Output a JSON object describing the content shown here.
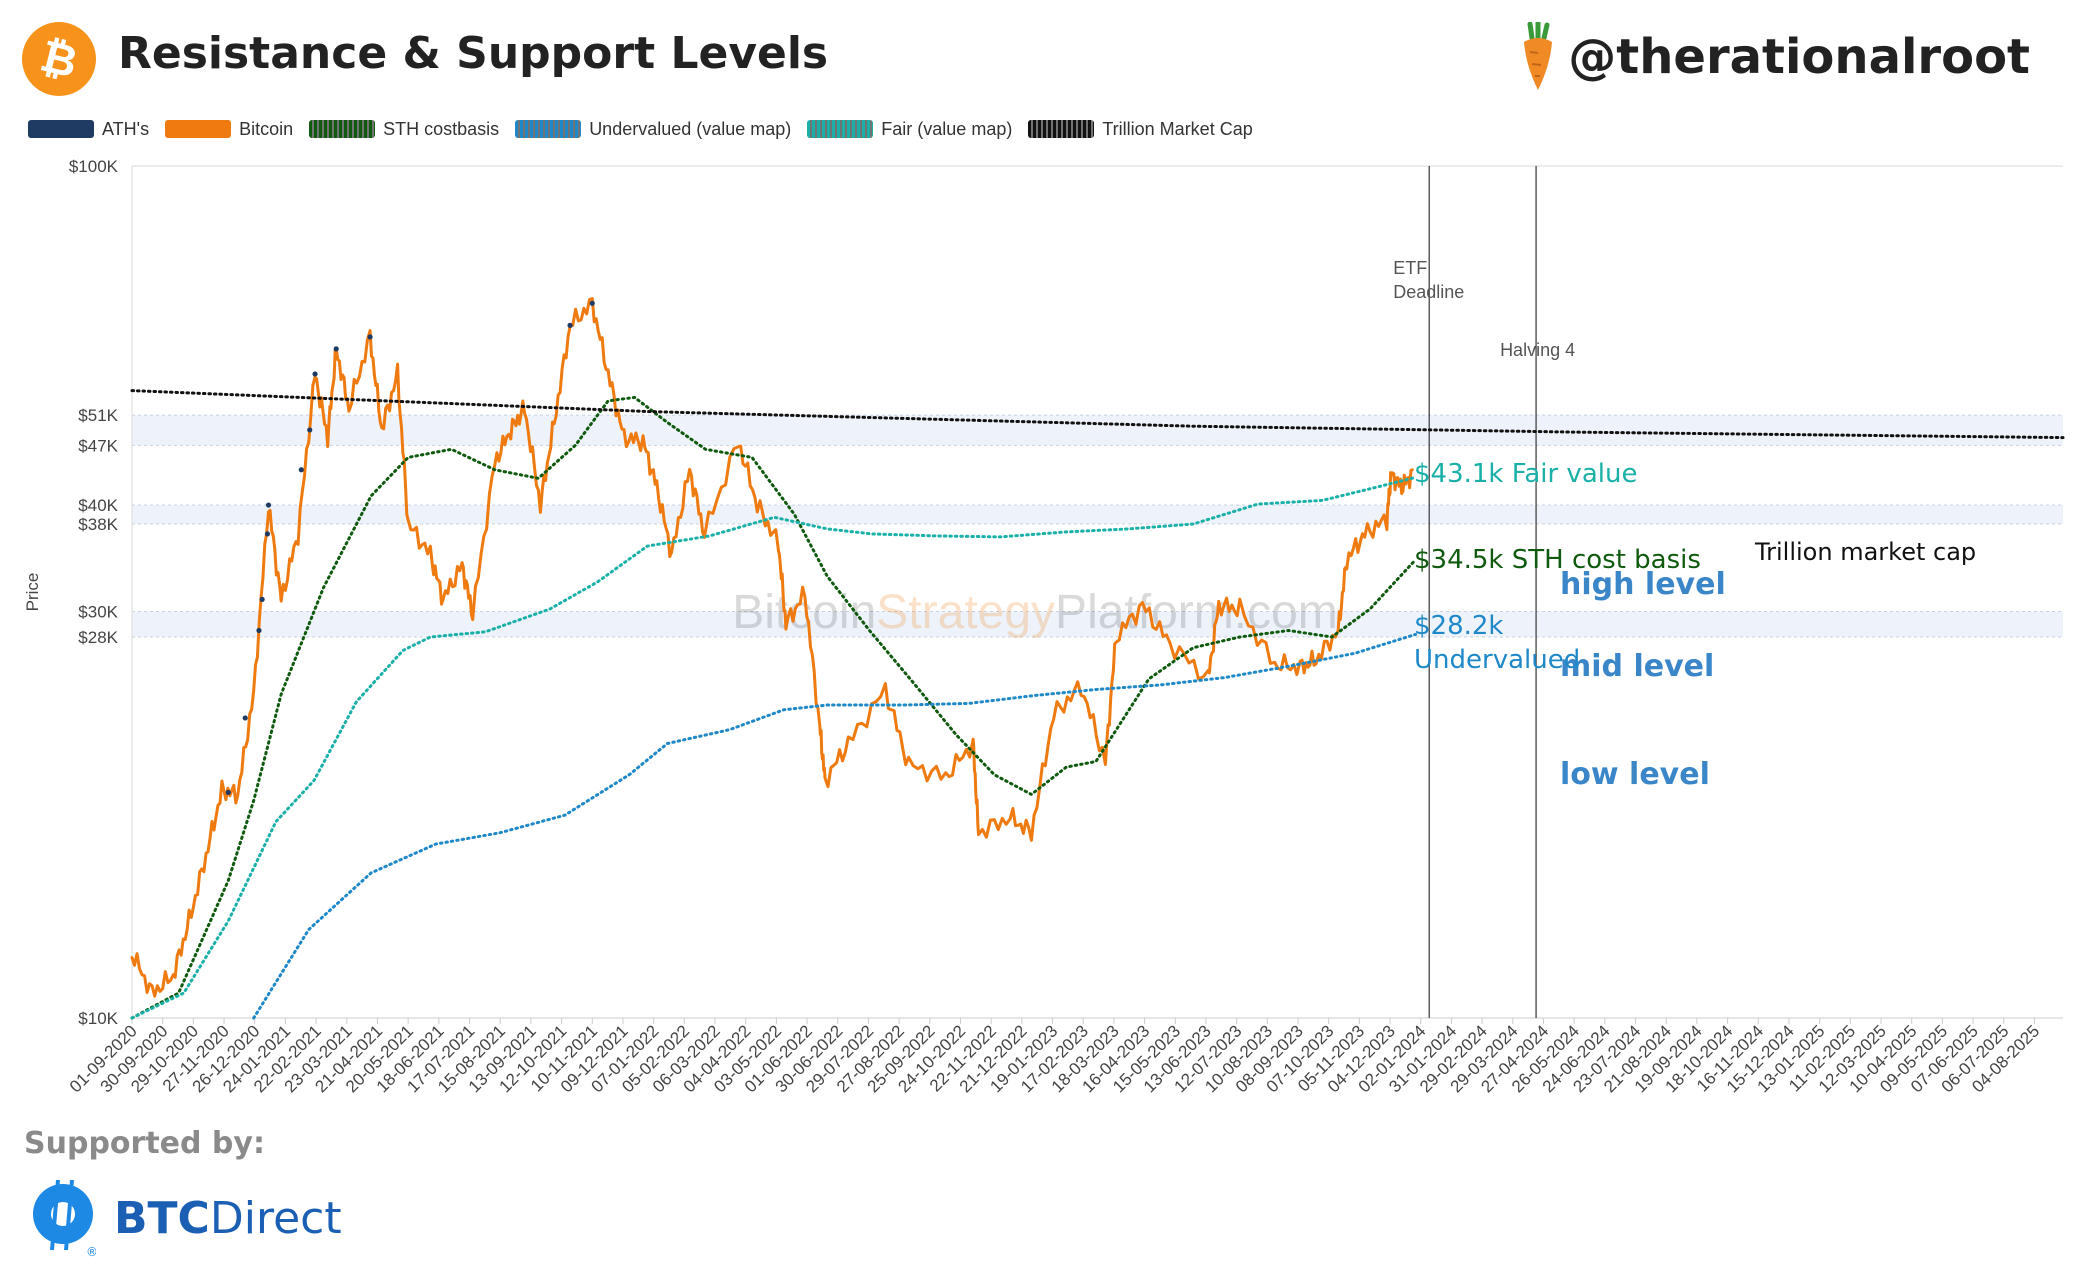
{
  "header": {
    "title": "Resistance & Support Levels",
    "handle": "@therationalroot",
    "logo_icon": "bitcoin-icon",
    "handle_icon": "carrot-icon"
  },
  "legend": [
    {
      "label": "ATH's",
      "color": "#1f3b63",
      "style": "solid"
    },
    {
      "label": "Bitcoin",
      "color": "#ee7a10",
      "style": "solid"
    },
    {
      "label": "STH costbasis",
      "color": "#0f5a0f",
      "style": "dotted"
    },
    {
      "label": "Undervalued (value map)",
      "color": "#1e88c8",
      "style": "dotted"
    },
    {
      "label": "Fair (value map)",
      "color": "#1ab0a8",
      "style": "dotted"
    },
    {
      "label": "Trillion Market Cap",
      "color": "#111111",
      "style": "dotted"
    }
  ],
  "chart_data": {
    "type": "line",
    "ylabel": "Price",
    "y_scale": "log",
    "ylim": [
      10000,
      100000
    ],
    "y_ticks": [
      {
        "value": 100000,
        "label": "$100K"
      },
      {
        "value": 51000,
        "label": "$51K"
      },
      {
        "value": 47000,
        "label": "$47K"
      },
      {
        "value": 40000,
        "label": "$40K"
      },
      {
        "value": 38000,
        "label": "$38K"
      },
      {
        "value": 30000,
        "label": "$30K"
      },
      {
        "value": 28000,
        "label": "$28K"
      },
      {
        "value": 10000,
        "label": "$10K"
      }
    ],
    "xlim": [
      "2020-09-01",
      "2025-08-31"
    ],
    "x_ticks": [
      "01-09-2020",
      "30-09-2020",
      "29-10-2020",
      "27-11-2020",
      "26-12-2020",
      "24-01-2021",
      "22-02-2021",
      "23-03-2021",
      "21-04-2021",
      "20-05-2021",
      "18-06-2021",
      "17-07-2021",
      "15-08-2021",
      "13-09-2021",
      "12-10-2021",
      "10-11-2021",
      "09-12-2021",
      "07-01-2022",
      "05-02-2022",
      "06-03-2022",
      "04-04-2022",
      "03-05-2022",
      "01-06-2022",
      "30-06-2022",
      "29-07-2022",
      "27-08-2022",
      "25-09-2022",
      "24-10-2022",
      "22-11-2022",
      "21-12-2022",
      "19-01-2023",
      "17-02-2023",
      "18-03-2023",
      "16-04-2023",
      "15-05-2023",
      "13-06-2023",
      "12-07-2023",
      "10-08-2023",
      "08-09-2023",
      "07-10-2023",
      "05-11-2023",
      "04-12-2023",
      "02-01-2024",
      "31-01-2024",
      "29-02-2024",
      "29-03-2024",
      "27-04-2024",
      "26-05-2024",
      "24-06-2024",
      "23-07-2024",
      "21-08-2024",
      "19-09-2024",
      "18-10-2024",
      "16-11-2024",
      "15-12-2024",
      "13-01-2025",
      "11-02-2025",
      "12-03-2025",
      "10-04-2025",
      "09-05-2025",
      "07-06-2025",
      "06-07-2025",
      "04-08-2025"
    ],
    "bands": [
      {
        "label": "high level",
        "low": 47000,
        "high": 51000,
        "color": "#eef3fb"
      },
      {
        "label": "mid level",
        "low": 38000,
        "high": 40000,
        "color": "#eef3fb"
      },
      {
        "label": "low level",
        "low": 28000,
        "high": 30000,
        "color": "#eef3fb"
      }
    ],
    "vlines": [
      {
        "date": "2024-01-10",
        "label": "ETF\nDeadline"
      },
      {
        "date": "2024-04-20",
        "label": "Halving 4"
      }
    ],
    "series": [
      {
        "name": "Bitcoin",
        "color": "#ee7a10",
        "style": "solid",
        "points": [
          [
            "2020-09-01",
            11900
          ],
          [
            "2020-09-20",
            10700
          ],
          [
            "2020-10-10",
            11200
          ],
          [
            "2020-10-25",
            13000
          ],
          [
            "2020-11-10",
            15500
          ],
          [
            "2020-11-25",
            18500
          ],
          [
            "2020-12-10",
            18300
          ],
          [
            "2020-12-25",
            24000
          ],
          [
            "2021-01-08",
            40000
          ],
          [
            "2021-01-20",
            31000
          ],
          [
            "2021-02-05",
            37000
          ],
          [
            "2021-02-21",
            57000
          ],
          [
            "2021-03-05",
            48000
          ],
          [
            "2021-03-13",
            61000
          ],
          [
            "2021-03-25",
            52000
          ],
          [
            "2021-04-14",
            63000
          ],
          [
            "2021-04-25",
            49000
          ],
          [
            "2021-05-10",
            57000
          ],
          [
            "2021-05-20",
            38000
          ],
          [
            "2021-06-10",
            35000
          ],
          [
            "2021-06-22",
            31000
          ],
          [
            "2021-07-10",
            34000
          ],
          [
            "2021-07-20",
            29800
          ],
          [
            "2021-08-10",
            45000
          ],
          [
            "2021-08-25",
            49000
          ],
          [
            "2021-09-07",
            52000
          ],
          [
            "2021-09-22",
            40000
          ],
          [
            "2021-10-05",
            50000
          ],
          [
            "2021-10-20",
            65000
          ],
          [
            "2021-11-10",
            69000
          ],
          [
            "2021-11-25",
            57000
          ],
          [
            "2021-12-10",
            48000
          ],
          [
            "2021-12-28",
            47500
          ],
          [
            "2022-01-10",
            42000
          ],
          [
            "2022-01-24",
            35000
          ],
          [
            "2022-02-10",
            44000
          ],
          [
            "2022-02-24",
            37000
          ],
          [
            "2022-03-28",
            47500
          ],
          [
            "2022-04-15",
            40000
          ],
          [
            "2022-05-05",
            36000
          ],
          [
            "2022-05-12",
            29000
          ],
          [
            "2022-05-30",
            31500
          ],
          [
            "2022-06-13",
            22000
          ],
          [
            "2022-06-18",
            19000
          ],
          [
            "2022-07-10",
            21000
          ],
          [
            "2022-08-14",
            24300
          ],
          [
            "2022-09-05",
            19800
          ],
          [
            "2022-10-10",
            19200
          ],
          [
            "2022-11-05",
            21000
          ],
          [
            "2022-11-10",
            16500
          ],
          [
            "2022-12-10",
            17200
          ],
          [
            "2022-12-30",
            16500
          ],
          [
            "2023-01-20",
            22700
          ],
          [
            "2023-02-15",
            24500
          ],
          [
            "2023-03-10",
            20000
          ],
          [
            "2023-03-20",
            28000
          ],
          [
            "2023-04-14",
            30500
          ],
          [
            "2023-05-10",
            27500
          ],
          [
            "2023-06-15",
            25000
          ],
          [
            "2023-06-25",
            30500
          ],
          [
            "2023-07-15",
            30200
          ],
          [
            "2023-08-17",
            26000
          ],
          [
            "2023-09-10",
            25800
          ],
          [
            "2023-09-25",
            26300
          ],
          [
            "2023-10-16",
            28500
          ],
          [
            "2023-10-24",
            34500
          ],
          [
            "2023-11-10",
            37000
          ],
          [
            "2023-12-01",
            38500
          ],
          [
            "2023-12-05",
            43500
          ],
          [
            "2023-12-15",
            42000
          ],
          [
            "2023-12-25",
            43500
          ]
        ]
      },
      {
        "name": "STH costbasis",
        "color": "#0f5a0f",
        "style": "dotted",
        "points": [
          [
            "2020-09-01",
            10000
          ],
          [
            "2020-10-15",
            10700
          ],
          [
            "2020-12-01",
            14500
          ],
          [
            "2020-12-25",
            18000
          ],
          [
            "2021-01-20",
            24000
          ],
          [
            "2021-03-01",
            32000
          ],
          [
            "2021-04-15",
            41000
          ],
          [
            "2021-05-20",
            45500
          ],
          [
            "2021-06-30",
            46500
          ],
          [
            "2021-08-10",
            44000
          ],
          [
            "2021-09-20",
            43000
          ],
          [
            "2021-10-25",
            47000
          ],
          [
            "2021-11-25",
            53000
          ],
          [
            "2021-12-20",
            53500
          ],
          [
            "2022-01-20",
            50000
          ],
          [
            "2022-02-25",
            46500
          ],
          [
            "2022-04-10",
            45500
          ],
          [
            "2022-05-20",
            39000
          ],
          [
            "2022-06-20",
            33000
          ],
          [
            "2022-07-30",
            28500
          ],
          [
            "2022-09-10",
            24700
          ],
          [
            "2022-10-20",
            21500
          ],
          [
            "2022-11-25",
            19300
          ],
          [
            "2022-12-30",
            18300
          ],
          [
            "2023-02-01",
            19700
          ],
          [
            "2023-03-01",
            20000
          ],
          [
            "2023-04-20",
            25000
          ],
          [
            "2023-06-01",
            27200
          ],
          [
            "2023-07-15",
            28000
          ],
          [
            "2023-08-30",
            28500
          ],
          [
            "2023-10-10",
            28000
          ],
          [
            "2023-11-15",
            30200
          ],
          [
            "2023-12-28",
            34500
          ]
        ]
      },
      {
        "name": "Undervalued (value map)",
        "color": "#1e88c8",
        "style": "dotted",
        "points": [
          [
            "2020-12-25",
            10000
          ],
          [
            "2021-02-15",
            12700
          ],
          [
            "2021-04-15",
            14800
          ],
          [
            "2021-06-15",
            16000
          ],
          [
            "2021-08-15",
            16500
          ],
          [
            "2021-10-15",
            17300
          ],
          [
            "2021-12-15",
            19300
          ],
          [
            "2022-01-20",
            21000
          ],
          [
            "2022-03-20",
            21800
          ],
          [
            "2022-05-10",
            23000
          ],
          [
            "2022-06-20",
            23300
          ],
          [
            "2022-09-01",
            23300
          ],
          [
            "2022-11-01",
            23400
          ],
          [
            "2023-01-01",
            23900
          ],
          [
            "2023-03-01",
            24300
          ],
          [
            "2023-05-01",
            24600
          ],
          [
            "2023-07-01",
            25100
          ],
          [
            "2023-09-01",
            25900
          ],
          [
            "2023-11-01",
            26800
          ],
          [
            "2023-12-28",
            28200
          ]
        ]
      },
      {
        "name": "Fair (value map)",
        "color": "#1ab0a8",
        "style": "dotted",
        "points": [
          [
            "2020-09-01",
            10000
          ],
          [
            "2020-10-20",
            10700
          ],
          [
            "2020-12-01",
            13000
          ],
          [
            "2021-01-15",
            17000
          ],
          [
            "2021-02-20",
            19000
          ],
          [
            "2021-04-01",
            23500
          ],
          [
            "2021-05-15",
            27000
          ],
          [
            "2021-06-10",
            28000
          ],
          [
            "2021-08-01",
            28400
          ],
          [
            "2021-10-01",
            30200
          ],
          [
            "2021-11-15",
            32500
          ],
          [
            "2022-01-01",
            35800
          ],
          [
            "2022-03-01",
            36800
          ],
          [
            "2022-05-01",
            38700
          ],
          [
            "2022-06-20",
            37500
          ],
          [
            "2022-08-01",
            37000
          ],
          [
            "2022-10-01",
            36800
          ],
          [
            "2022-12-01",
            36700
          ],
          [
            "2023-02-01",
            37200
          ],
          [
            "2023-04-01",
            37500
          ],
          [
            "2023-06-01",
            38000
          ],
          [
            "2023-08-01",
            40100
          ],
          [
            "2023-10-01",
            40500
          ],
          [
            "2023-11-15",
            41800
          ],
          [
            "2023-12-28",
            43100
          ]
        ]
      },
      {
        "name": "Trillion Market Cap",
        "color": "#111111",
        "style": "dotted",
        "points": [
          [
            "2020-09-01",
            54500
          ],
          [
            "2022-01-01",
            51500
          ],
          [
            "2023-06-01",
            49500
          ],
          [
            "2024-06-01",
            48700
          ],
          [
            "2025-08-31",
            48000
          ]
        ]
      }
    ],
    "ath_points": [
      [
        "2020-12-01",
        18400
      ],
      [
        "2020-12-17",
        22500
      ],
      [
        "2020-12-30",
        28500
      ],
      [
        "2021-01-02",
        31000
      ],
      [
        "2021-01-07",
        37000
      ],
      [
        "2021-01-08",
        40000
      ],
      [
        "2021-02-08",
        44000
      ],
      [
        "2021-02-16",
        49000
      ],
      [
        "2021-02-21",
        57000
      ],
      [
        "2021-03-13",
        61000
      ],
      [
        "2021-04-14",
        63000
      ],
      [
        "2021-10-20",
        65000
      ],
      [
        "2021-11-10",
        69000
      ]
    ],
    "annotations": [
      {
        "text": "Trillion market cap",
        "color": "#111111",
        "size": 24
      },
      {
        "text": "high level",
        "color": "#3a86c8",
        "size": 30,
        "bold": true
      },
      {
        "text": "$43.1k Fair value",
        "color": "#1ab0a8",
        "size": 26
      },
      {
        "text": "mid level",
        "color": "#3a86c8",
        "size": 30,
        "bold": true
      },
      {
        "text": "$34.5k STH cost basis",
        "color": "#0f5a0f",
        "size": 26
      },
      {
        "text": "low level",
        "color": "#3a86c8",
        "size": 30,
        "bold": true
      },
      {
        "text": "$28.2k",
        "color": "#1e88c8",
        "size": 26
      },
      {
        "text": "Undervalued",
        "color": "#1e88c8",
        "size": 26
      }
    ],
    "watermark": [
      "Bitcoin",
      "Strategy",
      "Platform.com"
    ]
  },
  "footer": {
    "supported_by": "Supported by:",
    "sponsor_bold": "BTC",
    "sponsor_rest": "Direct",
    "sponsor_icon": "btcdirect-logo-icon"
  }
}
